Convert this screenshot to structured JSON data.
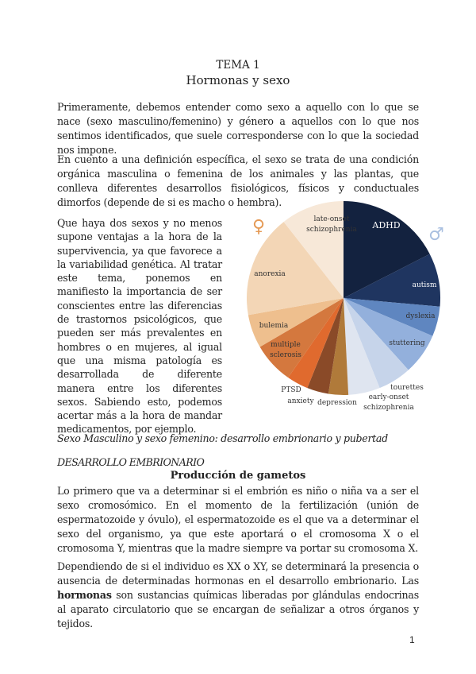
{
  "header": {
    "tema": "TEMA 1",
    "title": "Hormonas y sexo"
  },
  "paragraphs": {
    "p1": "Primeramente, debemos entender como sexo a aquello con lo que se nace (sexo masculino/femenino) y género a aquellos con lo que nos sentimos identificados, que suele corresponderse con lo que la sociedad nos impone.",
    "p2": "En cuento a una definición específica, el sexo se trata de una condición orgánica masculina o femenina de los animales y las plantas, que conlleva diferentes desarrollos fisiológicos, físicos y conductuales dimorfos (depende de si es macho o hembra).",
    "p3": "Que haya dos sexos y no menos supone ventajas a la hora de la supervivencia, ya que favorece a la variabilidad genética. Al tratar este tema, ponemos en manifiesto la importancia de ser conscientes entre las diferencias de trastornos psicológicos, que pueden ser más prevalentes en hombres o en mujeres, al igual que una misma patología es desarrollada de diferente manera entre los diferentes sexos. Sabiendo esto, podemos acertar más a la hora de mandar medicamentos, por ejemplo."
  },
  "section": {
    "heading": "Sexo Masculino y sexo femenino: desarrollo embrionario y pubertad",
    "subheading": "DESARROLLO EMBRIONARIO",
    "centered_title": "Producción de gametos",
    "p4": "Lo primero que va a determinar si el embrión es niño o niña va a ser el sexo cromosómico. En el momento de la fertilización (unión de espermatozoide y óvulo), el espermatozoide es el que va a determinar el sexo del organismo, ya que este aportará o el cromosoma X o el cromosoma Y, mientras que la madre siempre va portar su cromosoma X.",
    "p5_before": "Dependiendo de si el individuo es XX o XY, se determinará la presencia o ausencia de determinadas hormonas en el desarrollo embrionario. Las ",
    "p5_bold": "hormonas",
    "p5_after": " son sustancias químicas liberadas por glándulas endocrinas al aparato circulatorio que se encargan de señalizar a otros órganos y tejidos."
  },
  "page_number": "1",
  "chart_data": {
    "type": "pie",
    "start": "top, clockwise",
    "symbols": {
      "female": "♀",
      "male": "♂",
      "female_color": "#e59a55",
      "male_color": "#a9bfe0"
    },
    "slices": [
      {
        "label": "ADHD",
        "value": 17.5,
        "color": "#13223f",
        "group": "male"
      },
      {
        "label": "autism",
        "value": 8.9,
        "color": "#1f3560",
        "group": "male"
      },
      {
        "label": "dyslexia",
        "value": 5.0,
        "color": "#5f86c0",
        "group": "male"
      },
      {
        "label": "stuttering",
        "value": 6.9,
        "color": "#93b0dc",
        "group": "male"
      },
      {
        "label": "tourettes",
        "value": 5.6,
        "color": "#c6d4ea",
        "group": "male"
      },
      {
        "label": "early-onset schizophrenia",
        "value": 5.3,
        "color": "#dfe5f0",
        "group": "male"
      },
      {
        "label": "depression",
        "value": 3.3,
        "color": "#b07a3a",
        "group": "female"
      },
      {
        "label": "anxiety",
        "value": 3.6,
        "color": "#8a4a28",
        "group": "female"
      },
      {
        "label": "PTSD",
        "value": 3.6,
        "color": "#e06a2e",
        "group": "female"
      },
      {
        "label": "multiple sclerosis",
        "value": 6.9,
        "color": "#d4783e",
        "group": "female"
      },
      {
        "label": "bulemia",
        "value": 5.6,
        "color": "#eebf8e",
        "group": "female"
      },
      {
        "label": "anorexia",
        "value": 17.2,
        "color": "#f3d6b6",
        "group": "female"
      },
      {
        "label": "late-onset schizophrenia",
        "value": 10.6,
        "color": "#f7e8d8",
        "group": "female"
      }
    ]
  }
}
